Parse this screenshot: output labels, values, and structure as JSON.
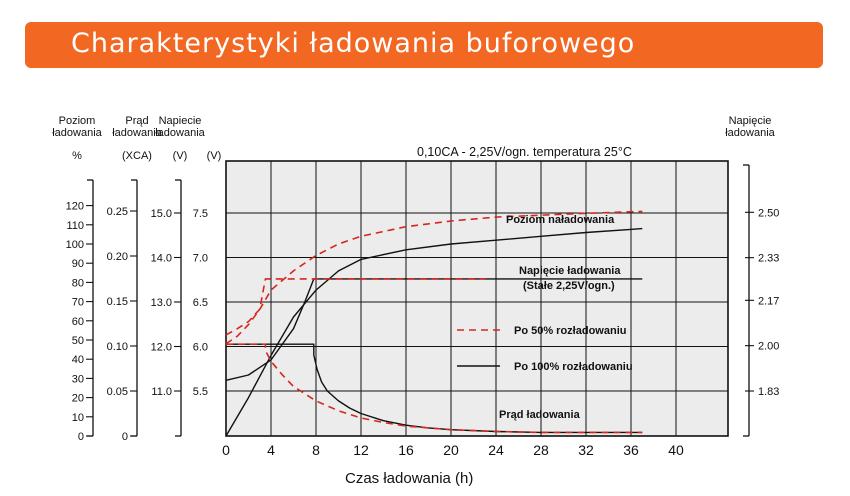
{
  "header": {
    "title": "Charakterystyki ładowania buforowego"
  },
  "chart_data": {
    "type": "line",
    "condition": "0,10CA - 2,25V/ogn.   temperatura 25°C",
    "xlabel": "Czas ładowania (h)",
    "xlim": [
      0,
      44
    ],
    "x_ticks": [
      0,
      4,
      8,
      12,
      16,
      20,
      24,
      28,
      32,
      36,
      40
    ],
    "axes": {
      "charge_level": {
        "header": [
          "Poziom",
          "ładowania",
          "%"
        ],
        "ticks": [
          0,
          10,
          20,
          30,
          40,
          50,
          60,
          70,
          80,
          90,
          100,
          110,
          120
        ],
        "labels": [
          "0",
          "10",
          "20",
          "30",
          "40",
          "50",
          "60",
          "70",
          "80",
          "90",
          "100",
          "110",
          "120"
        ]
      },
      "current": {
        "header": [
          "Prąd",
          "ładowania",
          "(XCA)"
        ],
        "ticks": [
          0,
          0.05,
          0.1,
          0.15,
          0.2,
          0.25
        ],
        "labels": [
          "0",
          "0.05",
          "0.10",
          "0.15",
          "0.20",
          "0.25"
        ]
      },
      "voltage_battery": {
        "header": [
          "Napiecie",
          "ładowania",
          "(V)"
        ],
        "ticks": [
          11.0,
          12.0,
          13.0,
          14.0,
          15.0
        ],
        "labels": [
          "11.0",
          "12.0",
          "13.0",
          "14.0",
          "15.0"
        ]
      },
      "voltage_inner": {
        "header": [
          "(V)"
        ],
        "ticks": [
          5.5,
          6.0,
          6.5,
          7.0,
          7.5
        ],
        "labels": [
          "5.5",
          "6.0",
          "6.5",
          "7.0",
          "7.5"
        ]
      },
      "voltage_cell": {
        "header": [
          "Napięcie",
          "ładowania"
        ],
        "ticks": [
          1.83,
          2.0,
          2.17,
          2.33,
          2.5
        ],
        "labels": [
          "1.83",
          "2.00",
          "2.17",
          "2.33",
          "2.50"
        ]
      }
    },
    "legend": [
      {
        "name": "Po 50% rozładowaniu",
        "style": "dashed",
        "color": "#d7261e"
      },
      {
        "name": "Po 100% rozładowaniu",
        "style": "solid",
        "color": "#111111"
      }
    ],
    "annotations": {
      "charge": "Poziom naładowania",
      "voltage": "Napięcie ładowania",
      "voltage_note": "(Stałe 2,25V/ogn.)",
      "current": "Prąd ładowania"
    },
    "series": [
      {
        "name": "Poziom naładowania (100%)",
        "axis": "charge_level",
        "style": "solid",
        "x": [
          0,
          2,
          4,
          6,
          8,
          10,
          12,
          16,
          20,
          24,
          28,
          32,
          37
        ],
        "y": [
          0,
          20,
          42,
          62,
          76,
          86,
          92,
          97,
          100,
          102,
          104,
          106,
          108
        ]
      },
      {
        "name": "Poziom naładowania (50%)",
        "axis": "charge_level",
        "style": "dashed",
        "x": [
          0,
          1,
          2,
          3,
          4,
          6,
          8,
          10,
          12,
          16,
          20,
          24,
          28,
          32,
          37
        ],
        "y": [
          48,
          52,
          58,
          66,
          76,
          86,
          94,
          100,
          104,
          109,
          112,
          114,
          115,
          116,
          117
        ]
      },
      {
        "name": "Napięcie ładowania (100%)",
        "axis": "voltage_inner",
        "style": "solid",
        "x": [
          0,
          2,
          4,
          6,
          7,
          7.8,
          8.2,
          12,
          20,
          30,
          37
        ],
        "y": [
          5.62,
          5.68,
          5.85,
          6.2,
          6.5,
          6.76,
          6.76,
          6.76,
          6.76,
          6.76,
          6.76
        ]
      },
      {
        "name": "Napięcie ładowania (50%)",
        "axis": "voltage_inner",
        "style": "dashed",
        "x": [
          0,
          1,
          2,
          3,
          3.5,
          5,
          10,
          15,
          20,
          23
        ],
        "y": [
          6.13,
          6.2,
          6.28,
          6.42,
          6.76,
          6.76,
          6.76,
          6.76,
          6.76,
          6.76
        ]
      },
      {
        "name": "Prąd ładowania (100%)",
        "axis": "current",
        "style": "solid",
        "x": [
          0,
          7.8,
          7.8,
          8.1,
          8.5,
          9,
          10,
          11,
          12,
          14,
          16,
          18,
          20,
          24,
          28,
          32,
          37
        ],
        "y": [
          0.102,
          0.102,
          0.09,
          0.074,
          0.06,
          0.05,
          0.039,
          0.031,
          0.025,
          0.017,
          0.012,
          0.009,
          0.007,
          0.005,
          0.004,
          0.004,
          0.004
        ]
      },
      {
        "name": "Prąd ładowania (50%)",
        "axis": "current",
        "style": "dashed",
        "x": [
          0,
          3.5,
          3.5,
          4,
          5,
          6,
          8,
          10,
          12,
          14,
          16,
          18,
          20,
          24,
          28,
          32,
          37
        ],
        "y": [
          0.102,
          0.102,
          0.095,
          0.083,
          0.068,
          0.055,
          0.039,
          0.028,
          0.02,
          0.015,
          0.011,
          0.009,
          0.007,
          0.005,
          0.004,
          0.004,
          0.004
        ]
      }
    ]
  }
}
